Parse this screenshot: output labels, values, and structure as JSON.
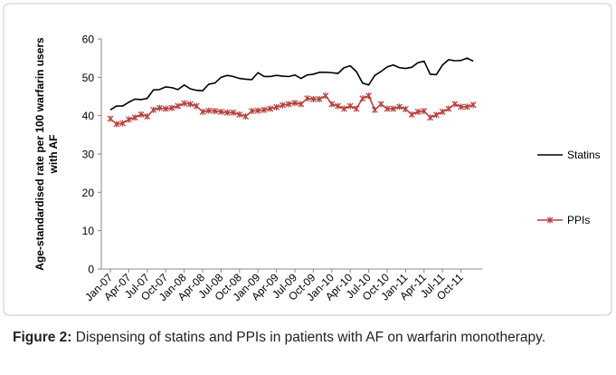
{
  "chart_data": {
    "type": "line",
    "ylabel": [
      "Age-standardised rate per 100 warfarin users",
      "with AF"
    ],
    "categories": [
      "Jan-07",
      null,
      null,
      "Apr-07",
      null,
      null,
      "Jul-07",
      null,
      null,
      "Oct-07",
      null,
      null,
      "Jan-08",
      null,
      null,
      "Apr-08",
      null,
      null,
      "Jul-08",
      null,
      null,
      "Oct-08",
      null,
      null,
      "Jan-09",
      null,
      null,
      "Apr-09",
      null,
      null,
      "Jul-09",
      null,
      null,
      "Oct-09",
      null,
      null,
      "Jan-10",
      null,
      null,
      "Apr-10",
      null,
      null,
      "Jul-10",
      null,
      null,
      "Oct-10",
      null,
      null,
      "Jan-11",
      null,
      null,
      "Apr-11",
      null,
      null,
      "Jul-11",
      null,
      null,
      "Oct-11",
      null,
      null
    ],
    "series": [
      {
        "name": "Statins",
        "color": "#000000",
        "marker": "none",
        "values": [
          41.5,
          42.5,
          42.5,
          43.5,
          44.3,
          44.2,
          44.5,
          46.7,
          46.8,
          47.5,
          47.3,
          46.8,
          48.0,
          47.0,
          46.6,
          46.5,
          48.2,
          48.5,
          50.0,
          50.5,
          50.2,
          49.7,
          49.5,
          49.4,
          51.2,
          50.2,
          50.2,
          50.5,
          50.3,
          50.2,
          50.6,
          49.7,
          50.6,
          50.8,
          51.3,
          51.3,
          51.2,
          51.0,
          52.5,
          53.0,
          51.5,
          48.5,
          48.0,
          50.5,
          51.5,
          52.7,
          53.2,
          52.5,
          52.3,
          52.6,
          53.8,
          54.2,
          50.8,
          50.7,
          53.2,
          54.6,
          54.3,
          54.4,
          55.0,
          54.2
        ]
      },
      {
        "name": "PPIs",
        "color": "#b5403c",
        "marker": "star",
        "values": [
          39.2,
          37.8,
          38.0,
          39.0,
          39.5,
          40.3,
          39.8,
          41.5,
          42.0,
          41.8,
          42.0,
          42.5,
          43.2,
          43.0,
          42.5,
          41.0,
          41.3,
          41.2,
          41.0,
          40.8,
          40.8,
          40.3,
          39.8,
          41.2,
          41.3,
          41.5,
          41.8,
          42.2,
          42.7,
          43.0,
          43.3,
          43.0,
          44.5,
          44.3,
          44.3,
          45.2,
          43.0,
          42.5,
          41.8,
          42.5,
          41.8,
          44.5,
          45.2,
          41.5,
          43.0,
          41.8,
          41.8,
          42.3,
          41.7,
          40.3,
          41.0,
          41.2,
          39.5,
          40.2,
          41.0,
          41.8,
          43.0,
          42.3,
          42.3,
          42.8
        ]
      }
    ],
    "ylim": [
      0,
      60
    ],
    "yticks": [
      0,
      10,
      20,
      30,
      40,
      50,
      60
    ],
    "grid": false,
    "legend": "right"
  },
  "caption": {
    "label": "Figure 2:",
    "text": "Dispensing of statins and PPIs in patients with AF on warfarin monotherapy."
  }
}
